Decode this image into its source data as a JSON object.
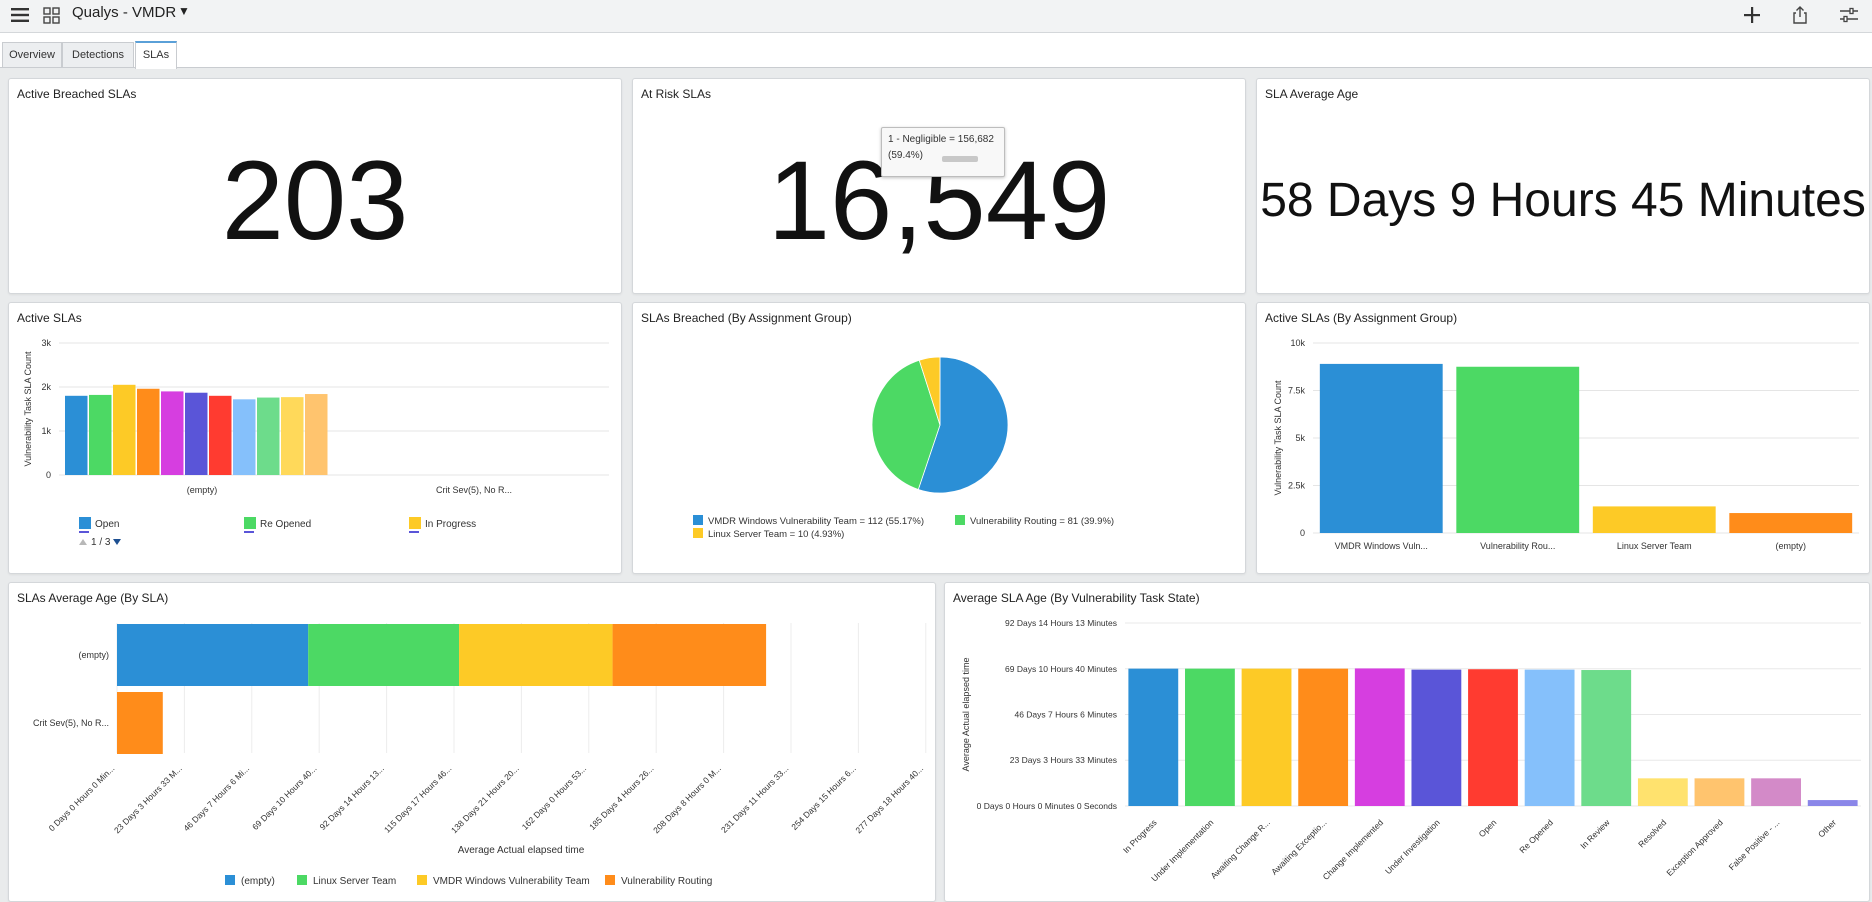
{
  "app": {
    "title": "Qualys - VMDR",
    "icons": [
      "menu-icon",
      "dashboard-grid-icon",
      "dropdown-caret-icon",
      "plus-icon",
      "share-icon",
      "settings-sliders-icon"
    ]
  },
  "tabs": [
    {
      "label": "Overview",
      "active": false
    },
    {
      "label": "Detections",
      "active": false
    },
    {
      "label": "SLAs",
      "active": true
    }
  ],
  "widgets": {
    "active_breached": {
      "title": "Active Breached SLAs",
      "value": "203"
    },
    "at_risk": {
      "title": "At Risk SLAs",
      "value": "16,549",
      "tooltip": {
        "line1": "1 - Negligible = 156,682",
        "line2": "(59.4%)"
      }
    },
    "avg_age": {
      "title": "SLA Average Age",
      "value": "58 Days 9 Hours 45 Minutes"
    },
    "active_slas": {
      "title": "Active SLAs",
      "pager": "1 / 3"
    },
    "breached_group": {
      "title": "SLAs Breached (By Assignment Group)"
    },
    "active_group": {
      "title": "Active SLAs (By Assignment Group)"
    },
    "avg_age_sla": {
      "title": "SLAs Average Age (By SLA)"
    },
    "avg_age_state": {
      "title": "Average SLA Age (By Vulnerability Task State)"
    }
  },
  "chart_data": [
    {
      "id": "active_slas",
      "type": "bar",
      "ylabel": "Vulnerability Task SLA Count",
      "ylim": [
        0,
        3000
      ],
      "yticks": [
        "0",
        "1k",
        "2k",
        "3k"
      ],
      "categories": [
        "(empty)",
        "Crit Sev(5), No R..."
      ],
      "series": [
        {
          "name": "Open",
          "color": "#2b8fd6",
          "values": [
            1800,
            0
          ]
        },
        {
          "name": "Re Opened",
          "color": "#4cd964",
          "values": [
            1820,
            0
          ]
        },
        {
          "name": "In Progress",
          "color": "#fdca26",
          "values": [
            2050,
            0
          ]
        },
        {
          "color": "#ff8c1a",
          "values": [
            1960,
            0
          ]
        },
        {
          "color": "#d63ee0",
          "values": [
            1900,
            0
          ]
        },
        {
          "color": "#5a55d8",
          "values": [
            1870,
            0
          ]
        },
        {
          "color": "#ff3b30",
          "values": [
            1800,
            0
          ]
        },
        {
          "color": "#85c0fb",
          "values": [
            1720,
            0
          ]
        },
        {
          "color": "#6ddc8b",
          "values": [
            1760,
            0
          ]
        },
        {
          "color": "#ffd95a",
          "values": [
            1770,
            0
          ]
        },
        {
          "color": "#ffc46e",
          "values": [
            1840,
            0
          ]
        }
      ],
      "legend": [
        "Open",
        "Re Opened",
        "In Progress"
      ]
    },
    {
      "id": "breached_group",
      "type": "pie",
      "slices": [
        {
          "label": "VMDR Windows Vulnerability Team = 112 (55.17%)",
          "value": 55.17,
          "color": "#2b8fd6"
        },
        {
          "label": "Vulnerability Routing = 81 (39.9%)",
          "value": 39.9,
          "color": "#4cd964"
        },
        {
          "label": "Linux Server Team = 10 (4.93%)",
          "value": 4.93,
          "color": "#fdca26"
        }
      ]
    },
    {
      "id": "active_group",
      "type": "bar",
      "ylabel": "Vulnerability Task SLA Count",
      "ylim": [
        0,
        10000
      ],
      "yticks": [
        "0",
        "2.5k",
        "5k",
        "7.5k",
        "10k"
      ],
      "categories": [
        "VMDR Windows Vuln...",
        "Vulnerability Rou...",
        "Linux Server Team",
        "(empty)"
      ],
      "values": [
        8900,
        8750,
        1400,
        1050
      ],
      "colors": [
        "#2b8fd6",
        "#4cd964",
        "#fdca26",
        "#ff8c1a"
      ]
    },
    {
      "id": "avg_age_sla",
      "type": "bar",
      "orientation": "horizontal",
      "stacked": true,
      "xlabel": "Average Actual elapsed time",
      "xmax": 300,
      "categories": [
        "(empty)",
        "Crit Sev(5), No R..."
      ],
      "xticks": [
        "0 Days 0 Hours 0 Min...",
        "23 Days 3 Hours 33 M...",
        "46 Days 7 Hours 6 Mi...",
        "69 Days 10 Hours 40...",
        "92 Days 14 Hours 13...",
        "115 Days 17 Hours 46...",
        "138 Days 21 Hours 20...",
        "162 Days 0 Hours 53...",
        "185 Days 4 Hours 26...",
        "208 Days 8 Hours 0 M...",
        "231 Days 11 Hours 33...",
        "254 Days 15 Hours 6...",
        "277 Days 18 Hours 40..."
      ],
      "series": [
        {
          "name": "(empty)",
          "color": "#2b8fd6",
          "values": [
            71,
            0
          ]
        },
        {
          "name": "Linux Server Team",
          "color": "#4cd964",
          "values": [
            56,
            0
          ]
        },
        {
          "name": "VMDR Windows Vulnerability Team",
          "color": "#fdca26",
          "values": [
            57,
            0
          ]
        },
        {
          "name": "Vulnerability Routing",
          "color": "#ff8c1a",
          "values": [
            57,
            17
          ]
        }
      ]
    },
    {
      "id": "avg_age_state",
      "type": "bar",
      "ylabel": "Average Actual elapsed time",
      "ymax": 92.59,
      "yticks": [
        {
          "label": "0 Days 0 Hours 0 Minutes 0 Seconds",
          "value": 0
        },
        {
          "label": "23 Days 3 Hours 33 Minutes",
          "value": 23.15
        },
        {
          "label": "46 Days 7 Hours 6 Minutes",
          "value": 46.3
        },
        {
          "label": "69 Days 10 Hours 40 Minutes",
          "value": 69.44
        },
        {
          "label": "92 Days 14 Hours 13 Minutes",
          "value": 92.59
        }
      ],
      "categories": [
        "In Progress",
        "Under Implementation",
        "Awaiting Change R...",
        "Awaiting Exceptio...",
        "Change Implemented",
        "Under Investigation",
        "Open",
        "Re Opened",
        "In Review",
        "Resolved",
        "Exception Approved",
        "False Positive - ...",
        "Other"
      ],
      "values": [
        69.5,
        69.5,
        69.5,
        69.5,
        69.6,
        69.0,
        69.2,
        69.0,
        68.8,
        14.0,
        14.0,
        14.0,
        3.0
      ],
      "colors": [
        "#2b8fd6",
        "#4cd964",
        "#fdca26",
        "#ff8c1a",
        "#d63ee0",
        "#5a55d8",
        "#ff3b30",
        "#85c0fb",
        "#6ddc8b",
        "#ffe26e",
        "#ffc46e",
        "#d38ac8",
        "#8a86e8"
      ]
    }
  ]
}
